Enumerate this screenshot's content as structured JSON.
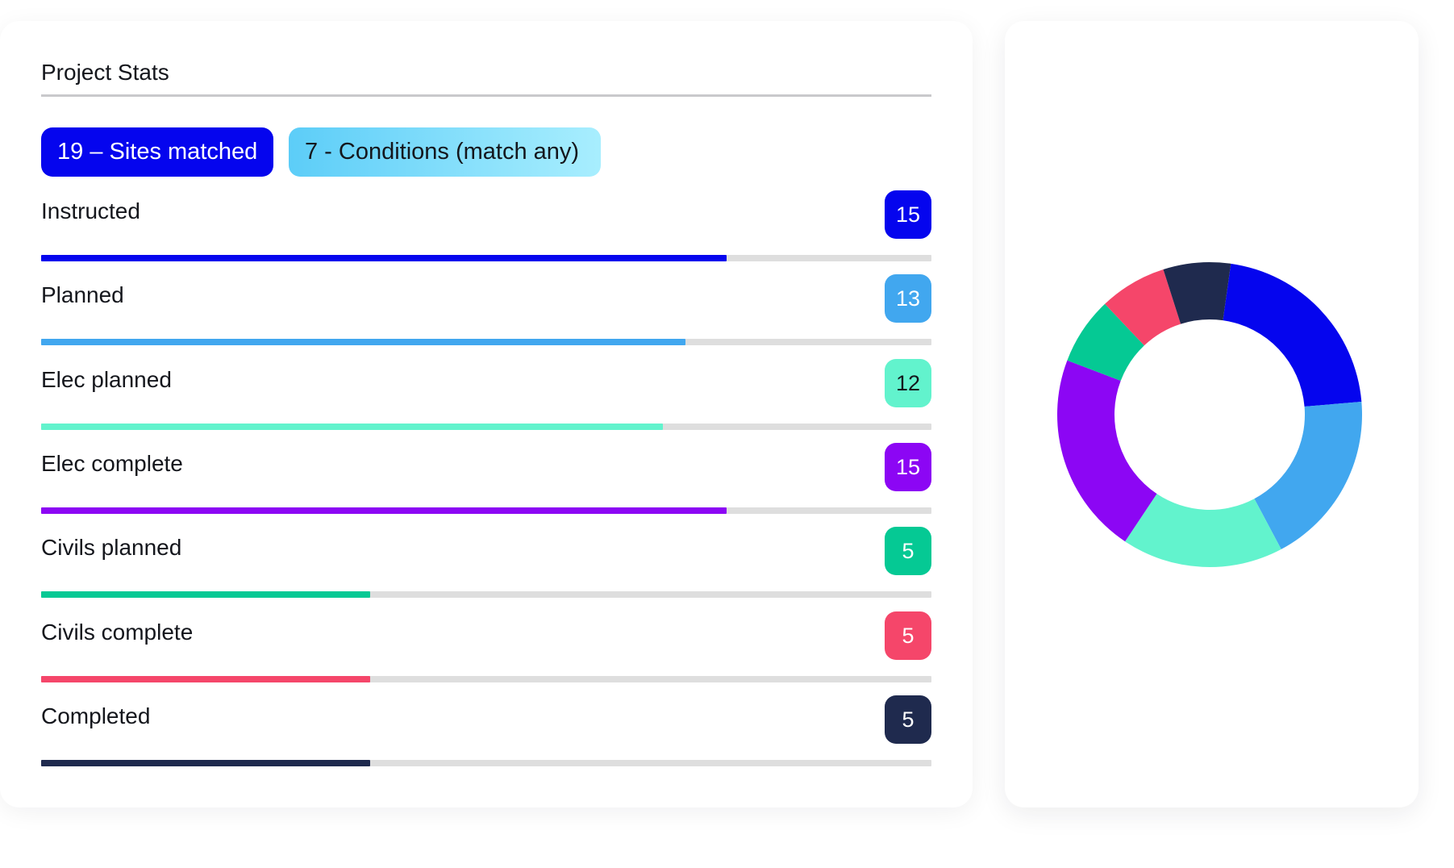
{
  "title": "Project Stats",
  "pills": {
    "sites": "19 – Sites matched",
    "conditions": "7 - Conditions (match any)"
  },
  "stats": [
    {
      "label": "Instructed",
      "value": "15",
      "fraction": 0.77,
      "color": "#0505ee",
      "text_color": "#ffffff"
    },
    {
      "label": "Planned",
      "value": "13",
      "fraction": 0.724,
      "color": "#41a7ef",
      "text_color": "#ffffff"
    },
    {
      "label": "Elec planned",
      "value": "12",
      "fraction": 0.698,
      "color": "#62f3cd",
      "text_color": "#14161c"
    },
    {
      "label": "Elec complete",
      "value": "15",
      "fraction": 0.77,
      "color": "#8c06f4",
      "text_color": "#ffffff"
    },
    {
      "label": "Civils planned",
      "value": "5",
      "fraction": 0.37,
      "color": "#05c994",
      "text_color": "#ffffff"
    },
    {
      "label": "Civils complete",
      "value": "5",
      "fraction": 0.37,
      "color": "#f5466a",
      "text_color": "#ffffff"
    },
    {
      "label": "Completed",
      "value": "5",
      "fraction": 0.37,
      "color": "#1f2a4e",
      "text_color": "#ffffff"
    }
  ],
  "chart_data": {
    "type": "pie",
    "variant": "donut",
    "categories": [
      "Instructed",
      "Planned",
      "Elec planned",
      "Elec complete",
      "Civils planned",
      "Civils complete",
      "Completed"
    ],
    "values": [
      15,
      13,
      12,
      15,
      5,
      5,
      5
    ],
    "colors": [
      "#0505ee",
      "#41a7ef",
      "#62f3cd",
      "#8c06f4",
      "#05c994",
      "#f5466a",
      "#1f2a4e"
    ],
    "start_angle_deg": 8,
    "title": ""
  }
}
